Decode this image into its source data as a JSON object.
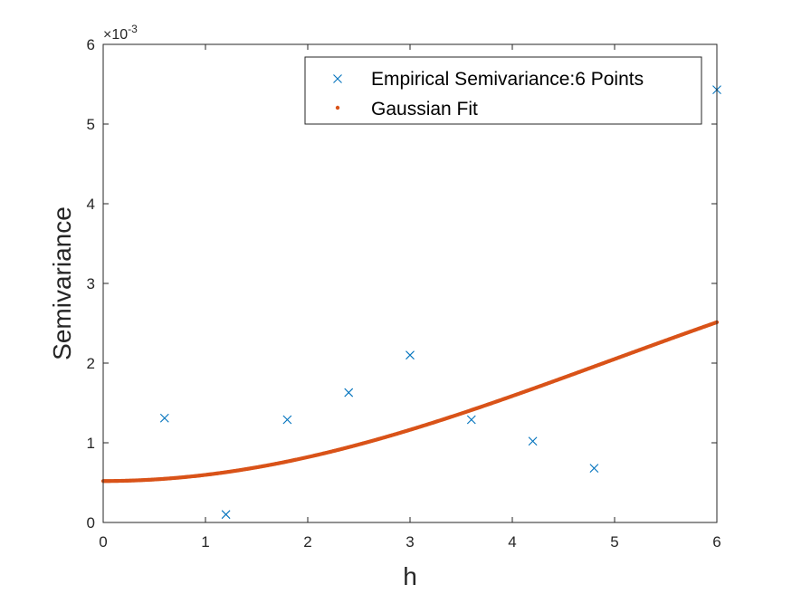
{
  "chart_data": {
    "type": "scatter",
    "xlabel": "h",
    "ylabel": "Semivariance",
    "xlim": [
      0,
      6
    ],
    "ylim": [
      0,
      0.006
    ],
    "x_ticks": [
      0,
      1,
      2,
      3,
      4,
      5,
      6
    ],
    "x_tick_labels": [
      "0",
      "1",
      "2",
      "3",
      "4",
      "5",
      "6"
    ],
    "y_ticks": [
      0,
      0.001,
      0.002,
      0.003,
      0.004,
      0.005,
      0.006
    ],
    "y_tick_labels": [
      "0",
      "1",
      "2",
      "3",
      "4",
      "5",
      "6"
    ],
    "y_exponent_label": {
      "base": "×10",
      "exp": "-3"
    },
    "grid": false,
    "legend_position": "top-right",
    "series": [
      {
        "name": "Empirical Semivariance:6 Points",
        "marker": "x",
        "color": "#0072BD",
        "x": [
          0.6,
          1.2,
          1.8,
          2.4,
          3.0,
          3.6,
          4.2,
          4.8,
          6.0
        ],
        "y": [
          0.00131,
          0.0001,
          0.00129,
          0.00163,
          0.0021,
          0.00129,
          0.00102,
          0.00068,
          0.00543
        ]
      },
      {
        "name": "Gaussian Fit",
        "marker": "dot",
        "color": "#D95319",
        "model": {
          "nugget": 0.00052,
          "sill": 0.00435,
          "range": 7.0,
          "x_start": 0,
          "x_end": 6,
          "samples": 600
        }
      }
    ]
  }
}
